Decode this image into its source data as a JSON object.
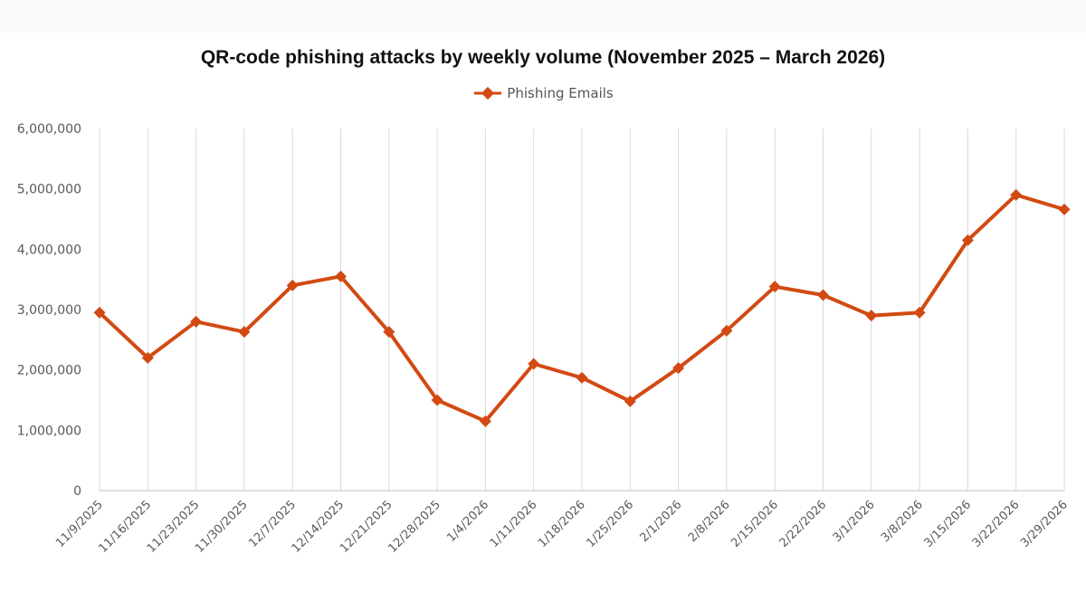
{
  "chart_data": {
    "type": "line",
    "title": "QR-code phishing attacks by weekly volume (November 2025 – March 2026)",
    "xlabel": "",
    "ylabel": "",
    "x": [
      "11/9/2025",
      "11/16/2025",
      "11/23/2025",
      "11/30/2025",
      "12/7/2025",
      "12/14/2025",
      "12/21/2025",
      "12/28/2025",
      "1/4/2026",
      "1/11/2026",
      "1/18/2026",
      "1/25/2026",
      "2/1/2026",
      "2/8/2026",
      "2/15/2026",
      "2/22/2026",
      "3/1/2026",
      "3/8/2026",
      "3/15/2026",
      "3/22/2026",
      "3/29/2026"
    ],
    "series": [
      {
        "name": "Phishing Emails",
        "color": "#d24a12",
        "values": [
          2950000,
          2200000,
          2800000,
          2630000,
          3400000,
          3550000,
          2630000,
          1500000,
          1150000,
          2100000,
          1870000,
          1480000,
          2030000,
          2650000,
          3380000,
          3240000,
          2900000,
          2950000,
          4150000,
          4900000,
          4660000
        ]
      }
    ],
    "ylim": [
      0,
      6000000
    ],
    "yticks": [
      0,
      1000000,
      2000000,
      3000000,
      4000000,
      5000000,
      6000000
    ],
    "ytick_labels": [
      "0",
      "1,000,000",
      "2,000,000",
      "3,000,000",
      "4,000,000",
      "5,000,000",
      "6,000,000"
    ],
    "grid": "vertical",
    "legend_position": "top-center"
  }
}
